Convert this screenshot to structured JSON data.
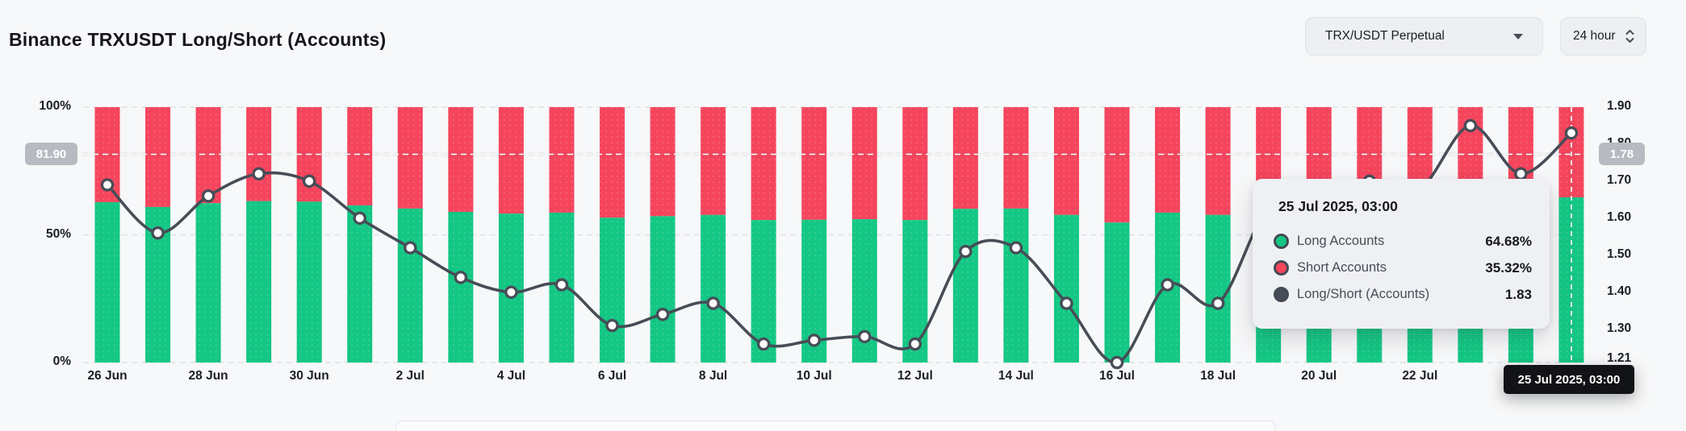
{
  "header": {
    "title": "Binance TRXUSDT Long/Short (Accounts)",
    "pair_dropdown": {
      "value": "TRX/USDT Perpetual"
    },
    "interval_dropdown": {
      "value": "24 hour"
    }
  },
  "chart_data": {
    "type": "bar",
    "subtype": "stacked-percent-bars-with-ratio-line",
    "categories": [
      "26 Jun",
      "27 Jun",
      "28 Jun",
      "29 Jun",
      "30 Jun",
      "1 Jul",
      "2 Jul",
      "3 Jul",
      "4 Jul",
      "5 Jul",
      "6 Jul",
      "7 Jul",
      "8 Jul",
      "9 Jul",
      "10 Jul",
      "11 Jul",
      "12 Jul",
      "13 Jul",
      "14 Jul",
      "15 Jul",
      "16 Jul",
      "17 Jul",
      "18 Jul",
      "19 Jul",
      "20 Jul",
      "21 Jul",
      "22 Jul",
      "23 Jul",
      "24 Jul",
      "25 Jul"
    ],
    "series": [
      {
        "name": "Long Accounts",
        "type": "bar",
        "unit": "%",
        "color": "#14C784",
        "values": [
          62.8,
          60.9,
          62.4,
          63.2,
          63.0,
          61.5,
          60.3,
          59.0,
          58.3,
          58.7,
          56.7,
          57.3,
          57.8,
          55.8,
          55.9,
          56.1,
          55.8,
          60.2,
          60.3,
          57.8,
          54.8,
          58.7,
          57.8,
          62.0,
          62.5,
          63.0,
          62.7,
          64.9,
          63.2,
          64.68
        ]
      },
      {
        "name": "Short Accounts",
        "type": "bar",
        "unit": "%",
        "color": "#F5455D",
        "values": [
          37.2,
          39.1,
          37.6,
          36.8,
          37.0,
          38.5,
          39.7,
          41.0,
          41.7,
          41.3,
          43.3,
          42.7,
          42.2,
          44.2,
          44.1,
          43.9,
          44.2,
          39.8,
          39.7,
          42.2,
          45.2,
          41.3,
          42.2,
          38.0,
          37.5,
          37.0,
          37.3,
          35.1,
          36.8,
          35.32
        ]
      },
      {
        "name": "Long/Short (Accounts)",
        "type": "line",
        "color": "#474D57",
        "values": [
          1.69,
          1.56,
          1.66,
          1.72,
          1.7,
          1.6,
          1.52,
          1.44,
          1.4,
          1.42,
          1.31,
          1.34,
          1.37,
          1.26,
          1.27,
          1.28,
          1.26,
          1.51,
          1.52,
          1.37,
          1.21,
          1.42,
          1.37,
          1.63,
          1.67,
          1.7,
          1.68,
          1.85,
          1.72,
          1.83
        ]
      }
    ],
    "left_axis": {
      "ticks": [
        "100%",
        "50%",
        "0%"
      ],
      "min": 0,
      "max": 100
    },
    "right_axis": {
      "ticks": [
        "1.90",
        "1.80",
        "1.70",
        "1.60",
        "1.50",
        "1.40",
        "1.30",
        "1.21"
      ],
      "min": 1.21,
      "max": 1.9
    },
    "x_tick_labels": [
      "26 Jun",
      "28 Jun",
      "30 Jun",
      "2 Jul",
      "4 Jul",
      "6 Jul",
      "8 Jul",
      "10 Jul",
      "12 Jul",
      "14 Jul",
      "16 Jul",
      "18 Jul",
      "20 Jul",
      "22 Jul",
      "24 Jul"
    ],
    "grid": "dashed-horizontal",
    "legend_position": "none",
    "crosshair": {
      "left_value": "81.90",
      "right_value": "1.78",
      "date_label": "25 Jul 2025, 03:00",
      "point_index": 29
    }
  },
  "tooltip": {
    "title": "25 Jul 2025, 03:00",
    "rows": [
      {
        "label": "Long Accounts",
        "value": "64.68%",
        "marker_color": "#14C784"
      },
      {
        "label": "Short Accounts",
        "value": "35.32%",
        "marker_color": "#F5455D"
      },
      {
        "label": "Long/Short (Accounts)",
        "value": "1.83",
        "marker_color": "#474D57"
      }
    ]
  },
  "colors": {
    "long_bar": "#14C784",
    "short_bar": "#F5455D",
    "ratio_line": "#474D57",
    "crosshair_badge_bg": "#B7BBC1",
    "date_pill_bg": "#121316",
    "background": "#F7F8F9"
  }
}
